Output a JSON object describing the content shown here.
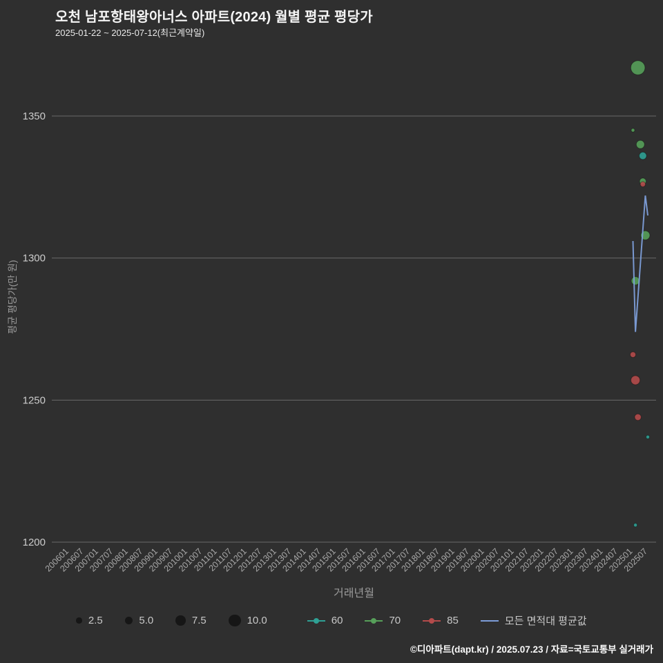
{
  "header": {
    "title": "오천 남포항태왕아너스 아파트(2024) 월별 평균 평당가",
    "subtitle": "2025-01-22 ~ 2025-07-12(최근계약일)"
  },
  "colors": {
    "background": "#2f2f2f",
    "grid": "#6a6a6a",
    "title_text": "#f5f5f5",
    "tick_text": "#a9a9a9",
    "ytick_text": "#cccccc",
    "axis_title_text": "#9a9a9a",
    "legend_text": "#c8c8c8",
    "size_legend_circle": "#161616",
    "series60": "#2fa195",
    "series70": "#57a05a",
    "series85": "#b44b4b",
    "avg_line": "#7d9ed9"
  },
  "chart_data": {
    "type": "scatter",
    "title": "오천 남포항태왕아너스 아파트(2024) 월별 평균 평당가",
    "subtitle": "2025-01-22 ~ 2025-07-12(최근계약일)",
    "xlabel": "거래년월",
    "ylabel": "평균 평당가(만 원)",
    "ylim": [
      1195,
      1378
    ],
    "yticks": [
      1350,
      1300,
      1250,
      1200
    ],
    "xticks": [
      "200601",
      "200607",
      "200701",
      "200707",
      "200801",
      "200807",
      "200901",
      "200907",
      "201001",
      "201007",
      "201101",
      "201107",
      "201201",
      "201207",
      "201301",
      "201307",
      "201401",
      "201407",
      "201501",
      "201507",
      "201601",
      "201607",
      "201701",
      "201707",
      "201801",
      "201807",
      "201901",
      "201907",
      "202001",
      "202007",
      "202101",
      "202107",
      "202201",
      "202207",
      "202301",
      "202307",
      "202401",
      "202407",
      "202501",
      "202507"
    ],
    "grid": "horizontal",
    "legend_position": "bottom",
    "size_legend": [
      "2.5",
      "5.0",
      "7.5",
      "10.0"
    ],
    "series": [
      {
        "name": "60",
        "type": "scatter",
        "color": "#2fa195",
        "points": [
          {
            "month": "2025-05",
            "value": 1336,
            "size": 5
          },
          {
            "month": "2025-07",
            "value": 1237,
            "size": 0.5
          },
          {
            "month": "2025-02",
            "value": 1206,
            "size": 0.5
          }
        ]
      },
      {
        "name": "70",
        "type": "scatter",
        "color": "#57a05a",
        "points": [
          {
            "month": "2025-03",
            "value": 1367,
            "size": 13
          },
          {
            "month": "2025-01",
            "value": 1345,
            "size": 0.5
          },
          {
            "month": "2025-04",
            "value": 1340,
            "size": 6
          },
          {
            "month": "2025-05",
            "value": 1327,
            "size": 4
          },
          {
            "month": "2025-06",
            "value": 1308,
            "size": 7
          },
          {
            "month": "2025-02",
            "value": 1292,
            "size": 6
          }
        ]
      },
      {
        "name": "85",
        "type": "scatter",
        "color": "#b44b4b",
        "points": [
          {
            "month": "2025-05",
            "value": 1326,
            "size": 2.5
          },
          {
            "month": "2025-01",
            "value": 1266,
            "size": 3
          },
          {
            "month": "2025-02",
            "value": 1257,
            "size": 7
          },
          {
            "month": "2025-03",
            "value": 1244,
            "size": 4
          }
        ]
      },
      {
        "name": "모든 면적대 평균값",
        "type": "line",
        "color": "#7d9ed9",
        "months": [
          "2025-01",
          "2025-02",
          "2025-03",
          "2025-04",
          "2025-05",
          "2025-06",
          "2025-07"
        ],
        "values": [
          1306,
          1274,
          1286,
          1298,
          1310,
          1322,
          1315
        ]
      }
    ]
  },
  "footer": {
    "credit": "©디아파트(dapt.kr) / 2025.07.23 / 자료=국토교통부 실거래가"
  }
}
